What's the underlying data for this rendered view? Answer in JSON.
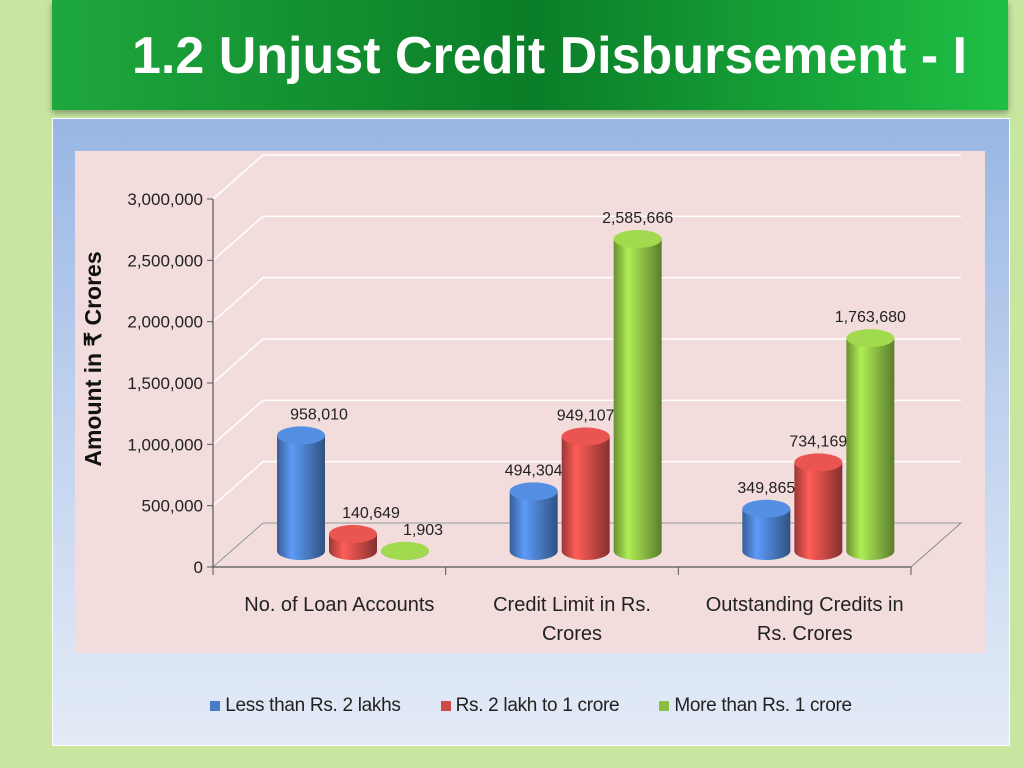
{
  "slide": {
    "title": "1.2 Unjust Credit Disbursement - I"
  },
  "chart_data": {
    "type": "bar",
    "subtype": "3d-cylinder",
    "title": "",
    "xlabel": "",
    "ylabel": "Amount in ₹ Crores",
    "ylim": [
      0,
      3000000
    ],
    "yticks": [
      "0",
      "500,000",
      "1,000,000",
      "1,500,000",
      "2,000,000",
      "2,500,000",
      "3,000,000"
    ],
    "ytick_values": [
      0,
      500000,
      1000000,
      1500000,
      2000000,
      2500000,
      3000000
    ],
    "grid": true,
    "legend_position": "bottom",
    "categories": [
      [
        "No. of Loan Accounts"
      ],
      [
        "Credit Limit in Rs.",
        "Crores"
      ],
      [
        "Outstanding Credits  in",
        "Rs. Crores"
      ]
    ],
    "series": [
      {
        "name": "Less than  Rs. 2 lakhs",
        "color": "#4a7cc6",
        "values": [
          958010,
          494304,
          349865
        ],
        "labels": [
          "958,010",
          "494,304",
          "349,865"
        ]
      },
      {
        "name": "Rs. 2 lakh to 1 crore",
        "color": "#cc4a46",
        "values": [
          140649,
          949107,
          734169
        ],
        "labels": [
          "140,649",
          "949,107",
          "734,169"
        ]
      },
      {
        "name": "More than Rs. 1 crore",
        "color": "#8cbe44",
        "values": [
          1903,
          2585666,
          1763680
        ],
        "labels": [
          "1,903",
          "2,585,666",
          "1,763,680"
        ]
      }
    ]
  }
}
